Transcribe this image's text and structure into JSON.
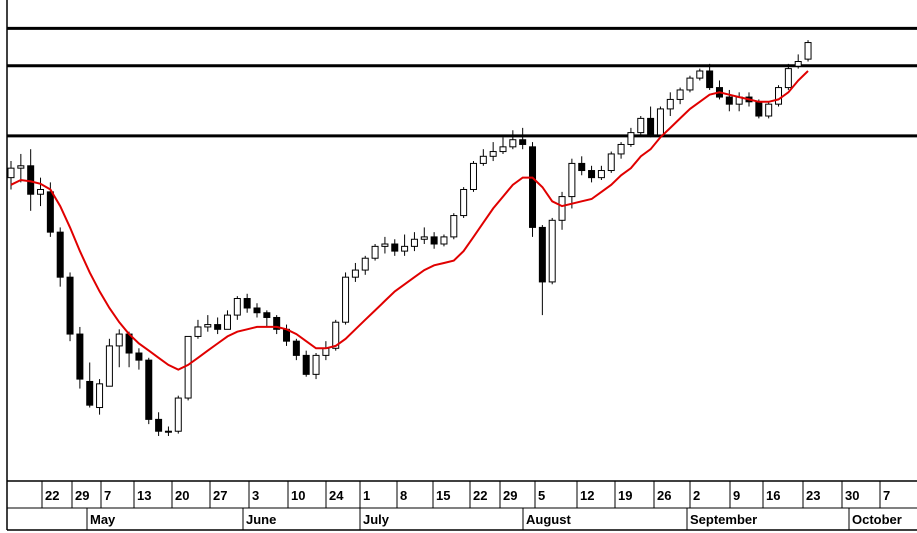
{
  "chart_data": {
    "type": "candlestick",
    "title": "",
    "xlabel": "",
    "ylabel": "",
    "grid": false,
    "ylim": [
      0,
      100
    ],
    "horizontal_levels": [
      95.5,
      87.6,
      72.8
    ],
    "indicator": {
      "type": "moving-average",
      "color": "#e00000"
    },
    "colors": {
      "up_body": "#ffffff",
      "down_body": "#000000",
      "wick": "#000000",
      "ma_line": "#e00000"
    },
    "day_labels": [
      "22",
      "29",
      "7",
      "13",
      "20",
      "27",
      "3",
      "10",
      "24",
      "1",
      "8",
      "15",
      "22",
      "29",
      "5",
      "12",
      "19",
      "26",
      "2",
      "9",
      "16",
      "23",
      "30",
      "7"
    ],
    "month_labels": [
      "May",
      "June",
      "July",
      "August",
      "September",
      "October"
    ],
    "candles": [
      [
        64.0,
        67.5,
        61.5,
        66.0
      ],
      [
        66.0,
        69.0,
        63.0,
        66.5
      ],
      [
        66.5,
        70.0,
        57.0,
        60.5
      ],
      [
        60.5,
        64.0,
        58.0,
        61.5
      ],
      [
        61.0,
        63.0,
        51.5,
        52.5
      ],
      [
        52.5,
        53.5,
        41.0,
        43.0
      ],
      [
        43.0,
        44.0,
        29.5,
        31.0
      ],
      [
        31.0,
        32.5,
        19.5,
        21.5
      ],
      [
        21.0,
        25.0,
        15.5,
        16.0
      ],
      [
        15.5,
        21.5,
        14.0,
        20.5
      ],
      [
        20.0,
        30.0,
        21.0,
        28.5
      ],
      [
        28.5,
        32.0,
        24.0,
        31.0
      ],
      [
        31.0,
        31.5,
        24.0,
        27.0
      ],
      [
        27.0,
        28.0,
        23.5,
        25.5
      ],
      [
        25.5,
        26.0,
        12.0,
        13.0
      ],
      [
        13.0,
        14.5,
        9.5,
        10.5
      ],
      [
        10.5,
        11.5,
        9.5,
        10.5
      ],
      [
        10.5,
        18.0,
        10.0,
        17.5
      ],
      [
        17.5,
        30.5,
        17.0,
        30.5
      ],
      [
        30.5,
        34.0,
        30.0,
        32.5
      ],
      [
        32.5,
        35.0,
        31.5,
        33.0
      ],
      [
        33.0,
        34.5,
        31.0,
        32.0
      ],
      [
        32.0,
        36.0,
        32.0,
        35.0
      ],
      [
        35.0,
        39.0,
        34.0,
        38.5
      ],
      [
        38.5,
        39.5,
        35.5,
        36.5
      ],
      [
        36.5,
        37.5,
        34.5,
        35.5
      ],
      [
        35.5,
        36.0,
        32.5,
        34.5
      ],
      [
        34.5,
        35.0,
        31.0,
        32.0
      ],
      [
        32.0,
        33.0,
        28.5,
        29.5
      ],
      [
        29.5,
        30.0,
        25.5,
        26.5
      ],
      [
        26.5,
        27.5,
        22.0,
        22.5
      ],
      [
        22.5,
        27.0,
        21.5,
        26.5
      ],
      [
        26.5,
        29.5,
        25.5,
        28.0
      ],
      [
        28.0,
        34.0,
        27.5,
        33.5
      ],
      [
        33.5,
        44.0,
        33.0,
        43.0
      ],
      [
        43.0,
        46.0,
        42.0,
        44.5
      ],
      [
        44.5,
        47.5,
        43.5,
        47.0
      ],
      [
        47.0,
        50.0,
        46.5,
        49.5
      ],
      [
        49.5,
        51.5,
        48.0,
        50.0
      ],
      [
        50.0,
        51.0,
        47.5,
        48.5
      ],
      [
        48.5,
        52.0,
        47.5,
        49.5
      ],
      [
        49.5,
        52.5,
        48.5,
        51.0
      ],
      [
        51.0,
        53.5,
        50.0,
        51.5
      ],
      [
        51.5,
        52.5,
        49.0,
        50.0
      ],
      [
        50.0,
        52.0,
        49.5,
        51.5
      ],
      [
        51.5,
        56.5,
        51.0,
        56.0
      ],
      [
        56.0,
        62.0,
        55.5,
        61.5
      ],
      [
        61.5,
        67.5,
        61.0,
        67.0
      ],
      [
        67.0,
        70.0,
        66.5,
        68.5
      ],
      [
        68.5,
        71.5,
        67.5,
        69.5
      ],
      [
        69.5,
        72.5,
        69.0,
        70.5
      ],
      [
        70.5,
        74.0,
        70.0,
        72.0
      ],
      [
        72.0,
        74.5,
        70.0,
        71.0
      ],
      [
        70.5,
        71.5,
        51.5,
        53.5
      ],
      [
        53.5,
        54.0,
        35.0,
        42.0
      ],
      [
        42.0,
        55.5,
        41.5,
        55.0
      ],
      [
        55.0,
        61.0,
        53.0,
        60.0
      ],
      [
        60.0,
        68.0,
        57.5,
        67.0
      ],
      [
        67.0,
        68.5,
        64.5,
        65.5
      ],
      [
        65.5,
        66.5,
        63.0,
        64.0
      ],
      [
        64.0,
        66.5,
        63.5,
        65.5
      ],
      [
        65.5,
        69.5,
        65.0,
        69.0
      ],
      [
        69.0,
        71.5,
        68.0,
        71.0
      ],
      [
        71.0,
        74.5,
        70.5,
        73.5
      ],
      [
        73.5,
        77.0,
        73.0,
        76.5
      ],
      [
        76.5,
        79.0,
        72.5,
        73.0
      ],
      [
        73.0,
        79.0,
        73.0,
        78.5
      ],
      [
        78.5,
        82.0,
        77.0,
        80.5
      ],
      [
        80.5,
        83.0,
        79.5,
        82.5
      ],
      [
        82.5,
        85.5,
        82.0,
        85.0
      ],
      [
        85.0,
        87.0,
        84.5,
        86.5
      ],
      [
        86.5,
        88.0,
        82.5,
        83.0
      ],
      [
        83.0,
        84.5,
        80.5,
        81.0
      ],
      [
        81.0,
        82.5,
        78.0,
        79.5
      ],
      [
        79.5,
        82.0,
        78.0,
        81.0
      ],
      [
        81.0,
        82.0,
        79.0,
        80.0
      ],
      [
        80.0,
        80.5,
        76.5,
        77.0
      ],
      [
        77.0,
        80.0,
        76.5,
        79.5
      ],
      [
        79.5,
        83.5,
        79.0,
        83.0
      ],
      [
        83.0,
        88.0,
        82.5,
        87.0
      ],
      [
        87.5,
        90.0,
        87.0,
        88.5
      ],
      [
        89.0,
        93.0,
        88.5,
        92.5
      ]
    ],
    "moving_average": [
      62.5,
      63.5,
      63.2,
      62.7,
      61.5,
      58.0,
      53.5,
      48.5,
      44.0,
      40.0,
      36.5,
      33.5,
      31.0,
      29.0,
      27.5,
      26.0,
      24.5,
      23.5,
      24.5,
      26.0,
      27.5,
      29.0,
      30.5,
      31.5,
      32.0,
      32.5,
      32.5,
      32.5,
      32.0,
      31.0,
      29.5,
      28.0,
      28.0,
      28.5,
      30.0,
      32.0,
      34.0,
      36.0,
      38.0,
      40.0,
      41.5,
      43.0,
      44.5,
      45.5,
      46.0,
      46.5,
      48.5,
      51.5,
      54.5,
      57.5,
      60.0,
      62.5,
      64.0,
      64.0,
      62.0,
      59.0,
      58.0,
      58.5,
      59.0,
      59.5,
      61.0,
      62.5,
      64.5,
      66.0,
      68.5,
      70.0,
      72.5,
      74.5,
      76.5,
      78.5,
      80.0,
      81.5,
      82.0,
      81.5,
      81.0,
      80.5,
      80.0,
      80.0,
      80.5,
      82.0,
      84.5,
      86.5
    ]
  }
}
